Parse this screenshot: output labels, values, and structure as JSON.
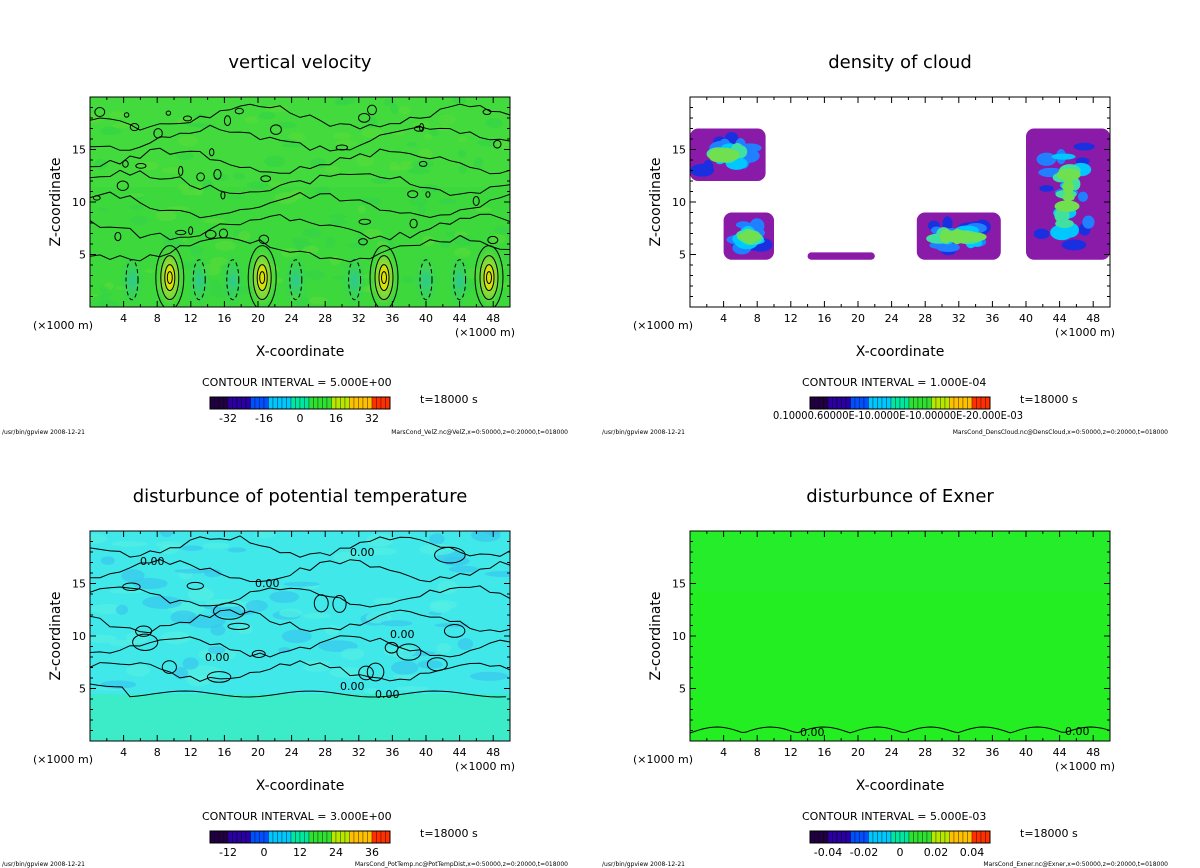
{
  "panels": [
    {
      "title": "vertical velocity",
      "xlabel": "X-coordinate",
      "ylabel": "Z-coordinate",
      "x_unit_left": "(×1000 m)",
      "x_unit_right": "(×1000 m)",
      "contour_interval": "CONTOUR INTERVAL = 5.000E+00",
      "time": "t=18000 s",
      "footer_left": "/usr/bin/gpview  2008-12-21",
      "footer_right": "MarsCond_VelZ.nc@VelZ,x=0:50000,z=0:20000,t=018000",
      "colorbar_labels": [
        "-32",
        "-16",
        "0",
        "16",
        "32"
      ],
      "contour_labels": []
    },
    {
      "title": "density of cloud",
      "xlabel": "X-coordinate",
      "ylabel": "Z-coordinate",
      "x_unit_left": "(×1000 m)",
      "x_unit_right": "(×1000 m)",
      "contour_interval": "CONTOUR INTERVAL = 1.000E-04",
      "time": "t=18000 s",
      "footer_left": "/usr/bin/gpview  2008-12-21",
      "footer_right": "MarsCond_DensCloud.nc@DensCloud,x=0:50000,z=0:20000,t=018000",
      "colorbar_text": "0.10000.60000E-10.0000E-10.00000E-20.000E-03",
      "contour_labels": []
    },
    {
      "title": "disturbunce of potential temperature",
      "xlabel": "X-coordinate",
      "ylabel": "Z-coordinate",
      "x_unit_left": "(×1000 m)",
      "x_unit_right": "(×1000 m)",
      "contour_interval": "CONTOUR INTERVAL = 3.000E+00",
      "time": "t=18000 s",
      "footer_left": "/usr/bin/gpview  2008-12-21",
      "footer_right": "MarsCond_PotTemp.nc@PotTempDist,x=0:50000,z=0:20000,t=018000",
      "colorbar_labels": [
        "-12",
        "0",
        "12",
        "24",
        "36"
      ],
      "contour_labels": [
        "0.00",
        "0.00",
        "0.00",
        "0.00",
        "0.00",
        "0.00",
        "0.00"
      ]
    },
    {
      "title": "disturbunce of Exner",
      "xlabel": "X-coordinate",
      "ylabel": "Z-coordinate",
      "x_unit_left": "(×1000 m)",
      "x_unit_right": "(×1000 m)",
      "contour_interval": "CONTOUR INTERVAL = 5.000E-03",
      "time": "t=18000 s",
      "footer_left": "/usr/bin/gpview  2008-12-21",
      "footer_right": "MarsCond_Exner.nc@Exner,x=0:50000,z=0:20000,t=018000",
      "colorbar_labels": [
        "-0.04",
        "-0.02",
        "0",
        "0.02",
        "0.04"
      ],
      "contour_labels": [
        "0.00",
        "0.00"
      ]
    }
  ],
  "chart_data": [
    {
      "type": "heatmap",
      "title": "vertical velocity",
      "xlabel": "X-coordinate",
      "ylabel": "Z-coordinate",
      "x_ticks": [
        4,
        8,
        12,
        16,
        20,
        24,
        28,
        32,
        36,
        40,
        44,
        48
      ],
      "z_ticks": [
        5,
        10,
        15
      ],
      "xlim": [
        0,
        50
      ],
      "zlim": [
        0,
        20
      ],
      "colorbar_ticks": [
        -32,
        -16,
        0,
        16,
        32
      ],
      "contour_interval": 5.0,
      "updraft_centers_x": [
        9.5,
        20.5,
        35,
        47.5
      ],
      "downdraft_centers_x": [
        5,
        13,
        17,
        24.5,
        31.5,
        40,
        44
      ]
    },
    {
      "type": "heatmap",
      "title": "density of cloud",
      "xlabel": "X-coordinate",
      "ylabel": "Z-coordinate",
      "x_ticks": [
        4,
        8,
        12,
        16,
        20,
        24,
        28,
        32,
        36,
        40,
        44,
        48
      ],
      "z_ticks": [
        5,
        10,
        15
      ],
      "xlim": [
        0,
        50
      ],
      "zlim": [
        0,
        20
      ],
      "contour_interval": 0.0001,
      "cloud_regions": [
        {
          "x": [
            0,
            9
          ],
          "z": [
            12,
            17
          ]
        },
        {
          "x": [
            4,
            10
          ],
          "z": [
            4.5,
            9
          ]
        },
        {
          "x": [
            14,
            22
          ],
          "z": [
            4.5,
            5.2
          ]
        },
        {
          "x": [
            27,
            37
          ],
          "z": [
            4.5,
            9
          ]
        },
        {
          "x": [
            40,
            50
          ],
          "z": [
            4.5,
            17
          ]
        }
      ]
    },
    {
      "type": "heatmap",
      "title": "disturbunce of potential temperature",
      "xlabel": "X-coordinate",
      "ylabel": "Z-coordinate",
      "x_ticks": [
        4,
        8,
        12,
        16,
        20,
        24,
        28,
        32,
        36,
        40,
        44,
        48
      ],
      "z_ticks": [
        5,
        10,
        15
      ],
      "xlim": [
        0,
        50
      ],
      "zlim": [
        0,
        20
      ],
      "colorbar_ticks": [
        -12,
        0,
        12,
        24,
        36
      ],
      "contour_interval": 3.0
    },
    {
      "type": "heatmap",
      "title": "disturbunce of Exner",
      "xlabel": "X-coordinate",
      "ylabel": "Z-coordinate",
      "x_ticks": [
        4,
        8,
        12,
        16,
        20,
        24,
        28,
        32,
        36,
        40,
        44,
        48
      ],
      "z_ticks": [
        5,
        10,
        15
      ],
      "xlim": [
        0,
        50
      ],
      "zlim": [
        0,
        20
      ],
      "colorbar_ticks": [
        -0.04,
        -0.02,
        0,
        0.02,
        0.04
      ],
      "contour_interval": 0.005
    }
  ],
  "colors": {
    "velocity_bg": "#3cd83c",
    "potential_bg": "#40e8e8",
    "exner_bg": "#22ee22",
    "cloud": "#8a1aa8"
  }
}
